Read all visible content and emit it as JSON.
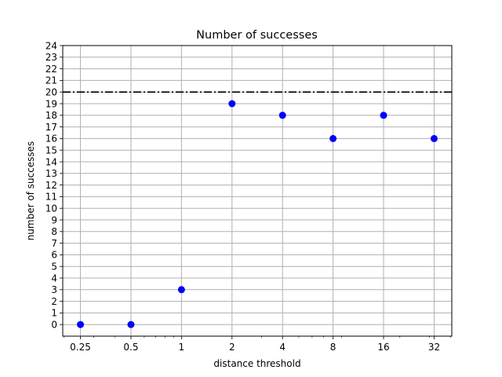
{
  "chart_data": {
    "type": "scatter",
    "title": "Number of successes",
    "xlabel": "distance threshold",
    "ylabel": "number of successes",
    "x_scale": "log2",
    "x": [
      0.25,
      0.5,
      1,
      2,
      4,
      8,
      16,
      32
    ],
    "x_tick_labels": [
      "0.25",
      "0.5",
      "1",
      "2",
      "4",
      "8",
      "16",
      "32"
    ],
    "y": [
      0,
      0,
      3,
      19,
      18,
      16,
      18,
      16
    ],
    "ylim": [
      -1,
      24
    ],
    "y_ticks": [
      0,
      1,
      2,
      3,
      4,
      5,
      6,
      7,
      8,
      9,
      10,
      11,
      12,
      13,
      14,
      15,
      16,
      17,
      18,
      19,
      20,
      21,
      22,
      23,
      24
    ],
    "grid": true,
    "marker_color": "#0000ff",
    "reference_line": {
      "y": 20,
      "style": "dash-dot",
      "color": "#000000"
    }
  }
}
